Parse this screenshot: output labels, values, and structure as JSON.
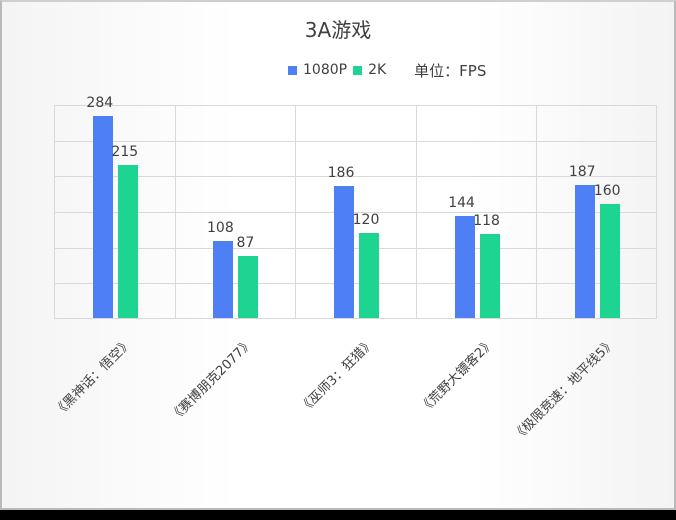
{
  "chart_data": {
    "type": "bar",
    "title": "3A游戏",
    "unit_label": "单位：FPS",
    "categories": [
      "《黑神话：悟空》",
      "《赛博朋克2077》",
      "《巫师3：狂猎》",
      "《荒野大镖客2》",
      "《极限竞速：地平线5》"
    ],
    "series": [
      {
        "name": "1080P",
        "color": "#4f7ff5",
        "values": [
          284,
          108,
          186,
          144,
          187
        ]
      },
      {
        "name": "2K",
        "color": "#1dd491",
        "values": [
          215,
          87,
          120,
          118,
          160
        ]
      }
    ],
    "xlabel": "",
    "ylabel": "",
    "ylim": [
      0,
      300
    ],
    "y_gridlines": [
      0,
      50,
      100,
      150,
      200,
      250,
      300
    ],
    "grid": true,
    "axis_tick_labels_visible": false,
    "legend_position": "top"
  },
  "legend": {
    "items": [
      {
        "label": "1080P",
        "color": "#4f7ff5"
      },
      {
        "label": "2K",
        "color": "#1dd491"
      }
    ],
    "unit": "单位：FPS"
  }
}
